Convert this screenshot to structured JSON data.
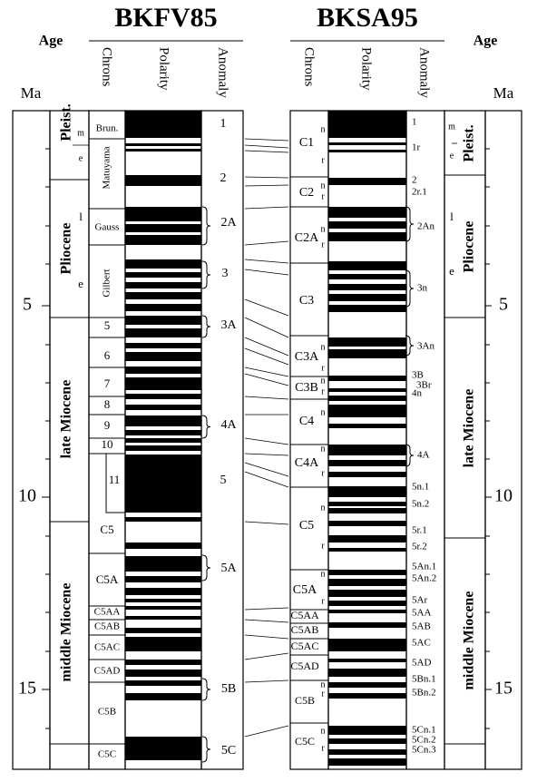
{
  "age_label": "Age",
  "unit": "Ma",
  "age_ticks": [
    "5",
    "10",
    "15"
  ],
  "columns": {
    "chrons": "Chrons",
    "polarity": "Polarity",
    "anomaly": "Anomaly"
  },
  "left": {
    "title": "BKFV85",
    "epochs": [
      "Pleist.",
      "Pliocene",
      "late Miocene",
      "middle Miocene"
    ],
    "substages": [
      "m",
      "e",
      "l",
      "e"
    ],
    "chrons": [
      "Brun.",
      "Matuyama",
      "Gauss",
      "Gilbert",
      "5",
      "6",
      "7",
      "8",
      "9",
      "10",
      "11",
      "C5",
      "C5A",
      "C5AA",
      "C5AB",
      "C5AC",
      "C5AD",
      "C5B",
      "C5C"
    ],
    "anomalies": [
      "1",
      "2",
      "2A",
      "3",
      "3A",
      "4A",
      "5",
      "5A",
      "5B",
      "5C"
    ]
  },
  "right": {
    "title": "BKSA95",
    "epochs": [
      "Pleist.",
      "Pliocene",
      "late Miocene",
      "middle Miocene"
    ],
    "substages": [
      "m",
      "e",
      "l",
      "e"
    ],
    "chrons": [
      "C1",
      "C2",
      "C2A",
      "C3",
      "C3A",
      "C3B",
      "C4",
      "C4A",
      "C5",
      "C5A",
      "C5AA",
      "C5AB",
      "C5AC",
      "C5AD",
      "C5B",
      "C5C"
    ],
    "polarity_marks": [
      "n",
      "r",
      "n",
      "r",
      "n",
      "r",
      "n",
      "r",
      "n",
      "r",
      "n",
      "n",
      "r",
      "n",
      "r",
      "n",
      "r",
      "n",
      "r",
      "n",
      "r"
    ],
    "anomalies": [
      "1",
      "1r",
      "2",
      "2r.1",
      "2An",
      "3n",
      "3An",
      "3B",
      "3Br",
      "4n",
      "4A",
      "5n.1",
      "5n.2",
      "5r.1",
      "5r.2",
      "5An.1",
      "5An.2",
      "5Ar",
      "5AA",
      "5AB",
      "5AC",
      "5AD",
      "5Bn.1",
      "5Bn.2",
      "5Cn.1",
      "5Cn.2",
      "5Cn.3"
    ]
  }
}
